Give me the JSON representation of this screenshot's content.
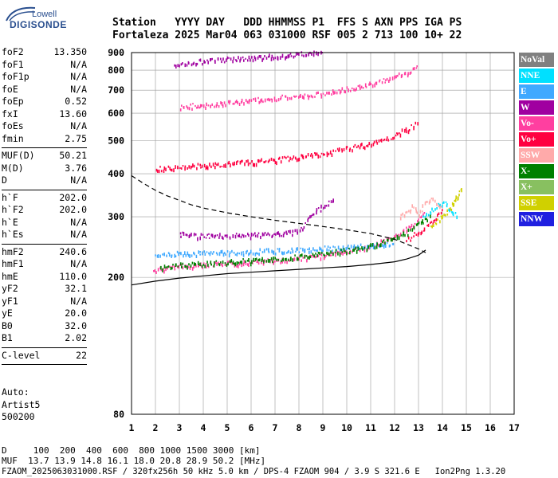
{
  "logo": {
    "line1": "Lowell",
    "line2": "DIGISONDE"
  },
  "header": {
    "line1": "Station   YYYY DAY   DDD HHMMSS P1  FFS S AXN PPS IGA PS",
    "line2": "Fortaleza 2025 Mar04 063 031000 RSF 005 2 713 100 10+ 22"
  },
  "params": {
    "group1": [
      {
        "name": "foF2",
        "value": "13.350"
      },
      {
        "name": "foF1",
        "value": "N/A"
      },
      {
        "name": "foF1p",
        "value": "N/A"
      },
      {
        "name": "foE",
        "value": "N/A"
      },
      {
        "name": "foEp",
        "value": "0.52"
      },
      {
        "name": "fxI",
        "value": "13.60"
      },
      {
        "name": "foEs",
        "value": "N/A"
      },
      {
        "name": "fmin",
        "value": "2.75"
      }
    ],
    "group2": [
      {
        "name": "MUF(D)",
        "value": "50.21"
      },
      {
        "name": "M(D)",
        "value": "3.76"
      },
      {
        "name": "D",
        "value": "N/A"
      }
    ],
    "group3": [
      {
        "name": "h`F",
        "value": "202.0"
      },
      {
        "name": "h`F2",
        "value": "202.0"
      },
      {
        "name": "h`E",
        "value": "N/A"
      },
      {
        "name": "h`Es",
        "value": "N/A"
      }
    ],
    "group4": [
      {
        "name": "hmF2",
        "value": "240.6"
      },
      {
        "name": "hmF1",
        "value": "N/A"
      },
      {
        "name": "hmE",
        "value": "110.0"
      },
      {
        "name": "yF2",
        "value": "32.1"
      },
      {
        "name": "yF1",
        "value": "N/A"
      },
      {
        "name": "yE",
        "value": "20.0"
      },
      {
        "name": "B0",
        "value": "32.0"
      },
      {
        "name": "B1",
        "value": "2.02"
      }
    ],
    "group5": [
      {
        "name": "C-level",
        "value": "22"
      }
    ]
  },
  "auto": {
    "line1": "Auto:",
    "line2": "Artist5",
    "line3": "500200"
  },
  "legend": [
    {
      "label": "NoVal",
      "color": "#808080",
      "text_color": "#ffffff"
    },
    {
      "label": "NNE",
      "color": "#00e0ff",
      "text_color": "#ffffff"
    },
    {
      "label": "E",
      "color": "#3fa9ff",
      "text_color": "#ffffff"
    },
    {
      "label": "W",
      "color": "#a000a0",
      "text_color": "#ffffff"
    },
    {
      "label": "Vo-",
      "color": "#ff3fa0",
      "text_color": "#ffffff"
    },
    {
      "label": "Vo+",
      "color": "#ff0040",
      "text_color": "#ffffff"
    },
    {
      "label": "SSW",
      "color": "#ffaaaa",
      "text_color": "#ffffff"
    },
    {
      "label": "X-",
      "color": "#008000",
      "text_color": "#ffffff"
    },
    {
      "label": "X+",
      "color": "#88c060",
      "text_color": "#ffffff"
    },
    {
      "label": "SSE",
      "color": "#d0d000",
      "text_color": "#ffffff"
    },
    {
      "label": "NNW",
      "color": "#2020e0",
      "text_color": "#ffffff"
    }
  ],
  "footer": {
    "line1": "D     100  200  400  600  800 1000 1500 3000 [km]",
    "line2": "MUF  13.7 13.9 14.8 16.1 18.0 20.8 28.9 50.2 [MHz]",
    "line3": "FZAOM_2025063031000.RSF / 320fx256h 50 kHz 5.0 km / DPS-4 FZAOM 904 / 3.9 S 321.6 E   Ion2Png 1.3.20"
  },
  "chart_data": {
    "type": "scatter",
    "xlim": [
      1,
      17
    ],
    "ylim": [
      80,
      900
    ],
    "y_scale": "log",
    "xticks": [
      1,
      2,
      3,
      4,
      5,
      6,
      7,
      8,
      9,
      10,
      11,
      12,
      13,
      14,
      15,
      16,
      17
    ],
    "yticks": [
      80,
      200,
      300,
      400,
      500,
      600,
      700,
      800,
      900
    ],
    "grid": true,
    "legend_position": "right",
    "traces": [
      {
        "name": "O-trace 1st hop",
        "color": "#ff3fa0",
        "x": [
          1.9,
          2.5,
          3.0,
          3.5,
          4.0,
          4.5,
          5.0,
          5.5,
          6.0,
          6.5,
          7.0,
          7.5,
          8.0,
          8.5,
          9.0,
          9.5,
          10.0,
          10.5,
          11.0,
          11.5,
          12.0,
          12.5,
          13.0,
          13.3
        ],
        "y": [
          208,
          212,
          214,
          215,
          216,
          217,
          218,
          219,
          220,
          221,
          222,
          224,
          226,
          228,
          230,
          233,
          236,
          240,
          246,
          252,
          262,
          275,
          292,
          305
        ]
      },
      {
        "name": "Vo- upper",
        "color": "#ff0040",
        "x": [
          12.5,
          13.0,
          13.5,
          13.8,
          14.0
        ],
        "y": [
          255,
          270,
          285,
          300,
          315
        ]
      },
      {
        "name": "E-region echoes",
        "color": "#3fa9ff",
        "x": [
          2.0,
          2.5,
          3.0,
          3.5,
          4.0,
          4.5,
          5.0,
          5.5,
          6.0,
          6.5,
          7.0,
          7.5,
          8.0,
          8.5,
          9.0,
          9.5,
          10.0,
          10.5,
          11.0,
          11.5,
          12.0
        ],
        "y": [
          228,
          232,
          233,
          233,
          234,
          234,
          235,
          235,
          236,
          237,
          237,
          238,
          239,
          240,
          241,
          242,
          243,
          245,
          246,
          248,
          250
        ]
      },
      {
        "name": "W echoes",
        "color": "#a000a0",
        "x": [
          3.0,
          3.5,
          4.0,
          4.5,
          5.0,
          5.5,
          6.0,
          6.5,
          7.0,
          7.5,
          8.0,
          8.5,
          9.0,
          9.5
        ],
        "y": [
          265,
          263,
          262,
          262,
          263,
          263,
          264,
          265,
          266,
          268,
          270,
          300,
          320,
          340
        ]
      },
      {
        "name": "2nd hop",
        "color": "#ff0040",
        "x": [
          2.0,
          2.5,
          3.0,
          3.5,
          4.0,
          4.5,
          5.0,
          5.5,
          6.0,
          6.5,
          7.0,
          7.5,
          8.0,
          8.5,
          9.0,
          9.5,
          10.0,
          10.5,
          11.0,
          11.5,
          12.0,
          12.5,
          13.0
        ],
        "y": [
          410,
          412,
          415,
          418,
          420,
          422,
          425,
          428,
          430,
          433,
          436,
          440,
          444,
          449,
          455,
          462,
          470,
          478,
          488,
          500,
          515,
          535,
          560
        ]
      },
      {
        "name": "3rd hop",
        "color": "#ff3fa0",
        "x": [
          3.0,
          3.5,
          4.0,
          4.5,
          5.0,
          5.5,
          6.0,
          6.5,
          7.0,
          7.5,
          8.0,
          8.5,
          9.0,
          9.5,
          10.0,
          10.5,
          11.0,
          11.5,
          12.0,
          12.5,
          13.0
        ],
        "y": [
          620,
          625,
          630,
          635,
          640,
          645,
          650,
          655,
          660,
          665,
          670,
          675,
          682,
          690,
          700,
          712,
          725,
          740,
          760,
          780,
          810
        ]
      },
      {
        "name": "4th hop",
        "color": "#a000a0",
        "x": [
          2.8,
          3.2,
          3.6,
          4.0,
          4.5,
          5.0,
          5.5,
          6.0,
          6.5,
          7.0,
          7.5,
          8.0,
          8.5,
          9.0
        ],
        "y": [
          830,
          835,
          840,
          845,
          850,
          855,
          860,
          865,
          870,
          875,
          880,
          885,
          890,
          895
        ]
      },
      {
        "name": "far spread",
        "color": "#d0d000",
        "x": [
          13.5,
          13.8,
          14.0,
          14.2,
          14.4,
          14.5,
          14.6,
          14.7,
          14.8
        ],
        "y": [
          280,
          290,
          300,
          310,
          320,
          330,
          340,
          350,
          360
        ]
      },
      {
        "name": "NNE spread",
        "color": "#00e0ff",
        "x": [
          13.2,
          13.5,
          13.8,
          14.0,
          14.2,
          14.4,
          14.6
        ],
        "y": [
          300,
          310,
          320,
          330,
          320,
          310,
          300
        ]
      },
      {
        "name": "SSW spread",
        "color": "#ffaaaa",
        "x": [
          12.2,
          12.5,
          12.8,
          13.0,
          13.3,
          13.6,
          14.0
        ],
        "y": [
          300,
          310,
          320,
          300,
          330,
          340,
          310
        ]
      },
      {
        "name": "X trace",
        "color": "#008000",
        "x": [
          2.2,
          3.0,
          4.0,
          5.0,
          6.0,
          7.0,
          8.0,
          9.0,
          10.0,
          11.0,
          12.0,
          12.5,
          13.0,
          13.5
        ],
        "y": [
          212,
          216,
          218,
          220,
          222,
          225,
          228,
          233,
          238,
          245,
          258,
          268,
          285,
          300
        ]
      }
    ],
    "profiles": [
      {
        "name": "profile-dashed",
        "style": "dashed",
        "x": [
          1.0,
          1.5,
          2.0,
          2.5,
          3.0,
          3.5,
          4.0,
          5.0,
          6.0,
          7.0,
          8.0,
          9.0,
          10.0,
          11.0,
          12.0,
          12.5,
          13.0,
          13.3
        ],
        "y": [
          395,
          375,
          358,
          345,
          335,
          325,
          318,
          308,
          300,
          293,
          287,
          281,
          275,
          268,
          258,
          250,
          242,
          236
        ]
      },
      {
        "name": "profile-solid",
        "style": "solid",
        "x": [
          1.0,
          2.0,
          3.0,
          4.0,
          5.0,
          6.0,
          7.0,
          8.0,
          9.0,
          10.0,
          11.0,
          12.0,
          12.5,
          13.0,
          13.3
        ],
        "y": [
          190,
          195,
          199,
          202,
          205,
          207,
          209,
          211,
          213,
          215,
          218,
          222,
          226,
          232,
          240
        ]
      }
    ]
  }
}
